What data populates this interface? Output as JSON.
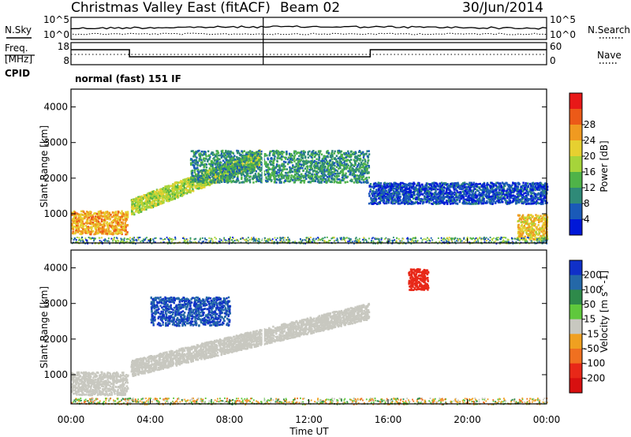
{
  "header": {
    "title": "Christmas Valley East (fitACF)",
    "beam": "Beam 02",
    "date": "30/Jun/2014"
  },
  "status_panel": {
    "left_labels": [
      "N.Sky",
      "Freq.",
      "[MHz]",
      "CPID"
    ],
    "right_labels": [
      "N.Search",
      "Nave"
    ],
    "sky_ticks": [
      "10^5",
      "10^0"
    ],
    "search_ticks": [
      "10^5",
      "10^0"
    ],
    "freq_ticks": [
      "18",
      "8"
    ],
    "nave_ticks": [
      "60",
      "0"
    ],
    "cpid_text": "normal (fast) 151 IF"
  },
  "chart_data": [
    {
      "type": "heatmap",
      "title": "",
      "parameter": "Power",
      "ylabel": "Slant Range [km]",
      "xlabel": "",
      "xlim": [
        "00:00",
        "24:00"
      ],
      "ylim": [
        180,
        4500
      ],
      "y_ticks": [
        1000,
        2000,
        3000,
        4000
      ],
      "colorbar": {
        "label": "Power [dB]",
        "ticks": [
          4,
          8,
          12,
          16,
          20,
          24,
          28
        ],
        "colors": [
          "#0018d8",
          "#1a5ab8",
          "#2f8a78",
          "#4fb348",
          "#a6d43a",
          "#e6d030",
          "#f09a20",
          "#ec5a18",
          "#e81818"
        ]
      },
      "features": [
        {
          "name": "near-range band",
          "time_start": "00:00",
          "time_end": "02:50",
          "range_km": [
            450,
            1100
          ],
          "power_db": 28
        },
        {
          "name": "rising arc",
          "time_start": "03:00",
          "time_end": "09:30",
          "range_km": [
            1200,
            2600
          ],
          "power_db": 22
        },
        {
          "name": "main echo",
          "time_start": "06:00",
          "time_end": "15:00",
          "range_km": [
            1900,
            2800
          ],
          "power_db": 14
        },
        {
          "name": "evening band",
          "time_start": "15:00",
          "time_end": "24:00",
          "range_km": [
            1300,
            1900
          ],
          "power_db": 8
        },
        {
          "name": "late near-range",
          "time_start": "22:30",
          "time_end": "24:00",
          "range_km": [
            300,
            1000
          ],
          "power_db": 26
        }
      ]
    },
    {
      "type": "heatmap",
      "title": "",
      "parameter": "Velocity",
      "ylabel": "Slant Range [km]",
      "xlabel": "Time UT",
      "xlim": [
        "00:00",
        "24:00"
      ],
      "ylim": [
        180,
        4500
      ],
      "y_ticks": [
        1000,
        2000,
        3000,
        4000
      ],
      "x_ticks": [
        "00:00",
        "04:00",
        "08:00",
        "12:00",
        "16:00",
        "20:00",
        "00:00"
      ],
      "colorbar": {
        "label": "Velocity [m s^-1]",
        "ticks": [
          200,
          100,
          50,
          15,
          -15,
          -50,
          -100,
          -200
        ],
        "colors": [
          "#1030c8",
          "#2468a8",
          "#2e8a4a",
          "#5fc83c",
          "#c8c8c0",
          "#f0a020",
          "#f07020",
          "#e82818",
          "#d81010"
        ]
      },
      "features": [
        {
          "name": "ground scatter band",
          "time_start": "00:00",
          "time_end": "02:50",
          "range_km": [
            450,
            1100
          ],
          "velocity_ms": 0
        },
        {
          "name": "ground scatter arc",
          "time_start": "03:00",
          "time_end": "15:00",
          "range_km": [
            1200,
            2800
          ],
          "velocity_ms": 0
        },
        {
          "name": "positive-velocity patch",
          "time_start": "04:00",
          "time_end": "08:00",
          "range_km": [
            2400,
            3200
          ],
          "velocity_ms": 200
        },
        {
          "name": "negative-velocity patch",
          "time_start": "17:00",
          "time_end": "18:00",
          "range_km": [
            3400,
            4000
          ],
          "velocity_ms": -200
        }
      ]
    }
  ]
}
